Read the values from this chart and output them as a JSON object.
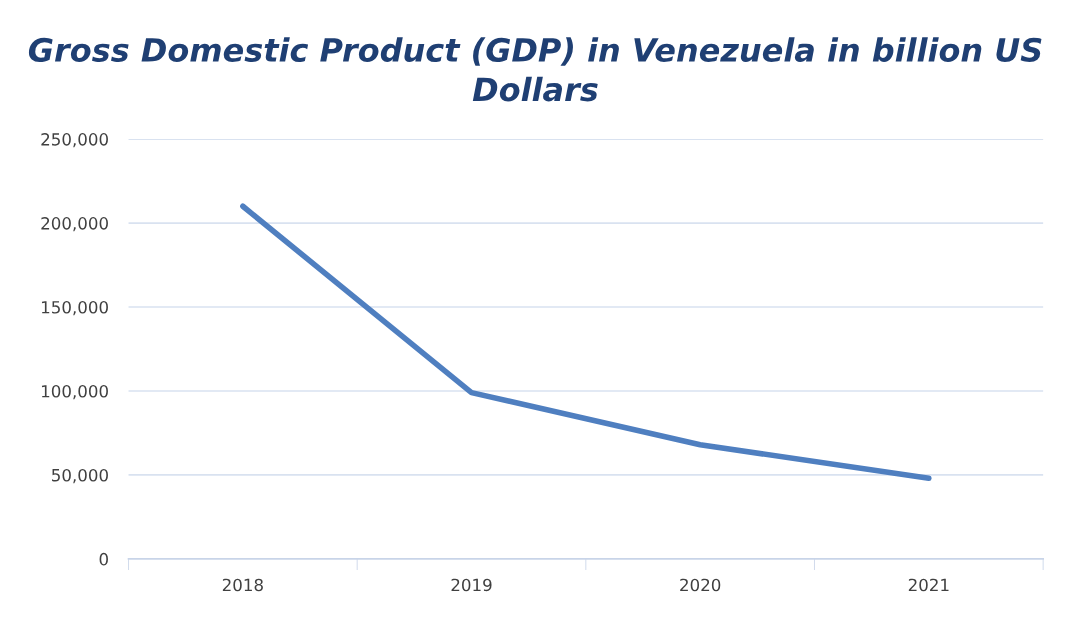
{
  "chart_data": {
    "type": "line",
    "title": "Gross Domestic Product (GDP) in Venezuela in billion US Dollars",
    "categories": [
      "2018",
      "2019",
      "2020",
      "2021"
    ],
    "series": [
      {
        "color": "#4f7fc0",
        "values": [
          210000,
          99000,
          68000,
          48000
        ]
      }
    ],
    "ylim": [
      0,
      250000
    ],
    "yticks": [
      {
        "value": 0,
        "label": "0"
      },
      {
        "value": 50000,
        "label": "50,000"
      },
      {
        "value": 100000,
        "label": "100,000"
      },
      {
        "value": 150000,
        "label": "150,000"
      },
      {
        "value": 200000,
        "label": "200,000"
      },
      {
        "value": 250000,
        "label": "250,000"
      }
    ],
    "grid": "y",
    "marker": "none",
    "line_style": "solid"
  }
}
